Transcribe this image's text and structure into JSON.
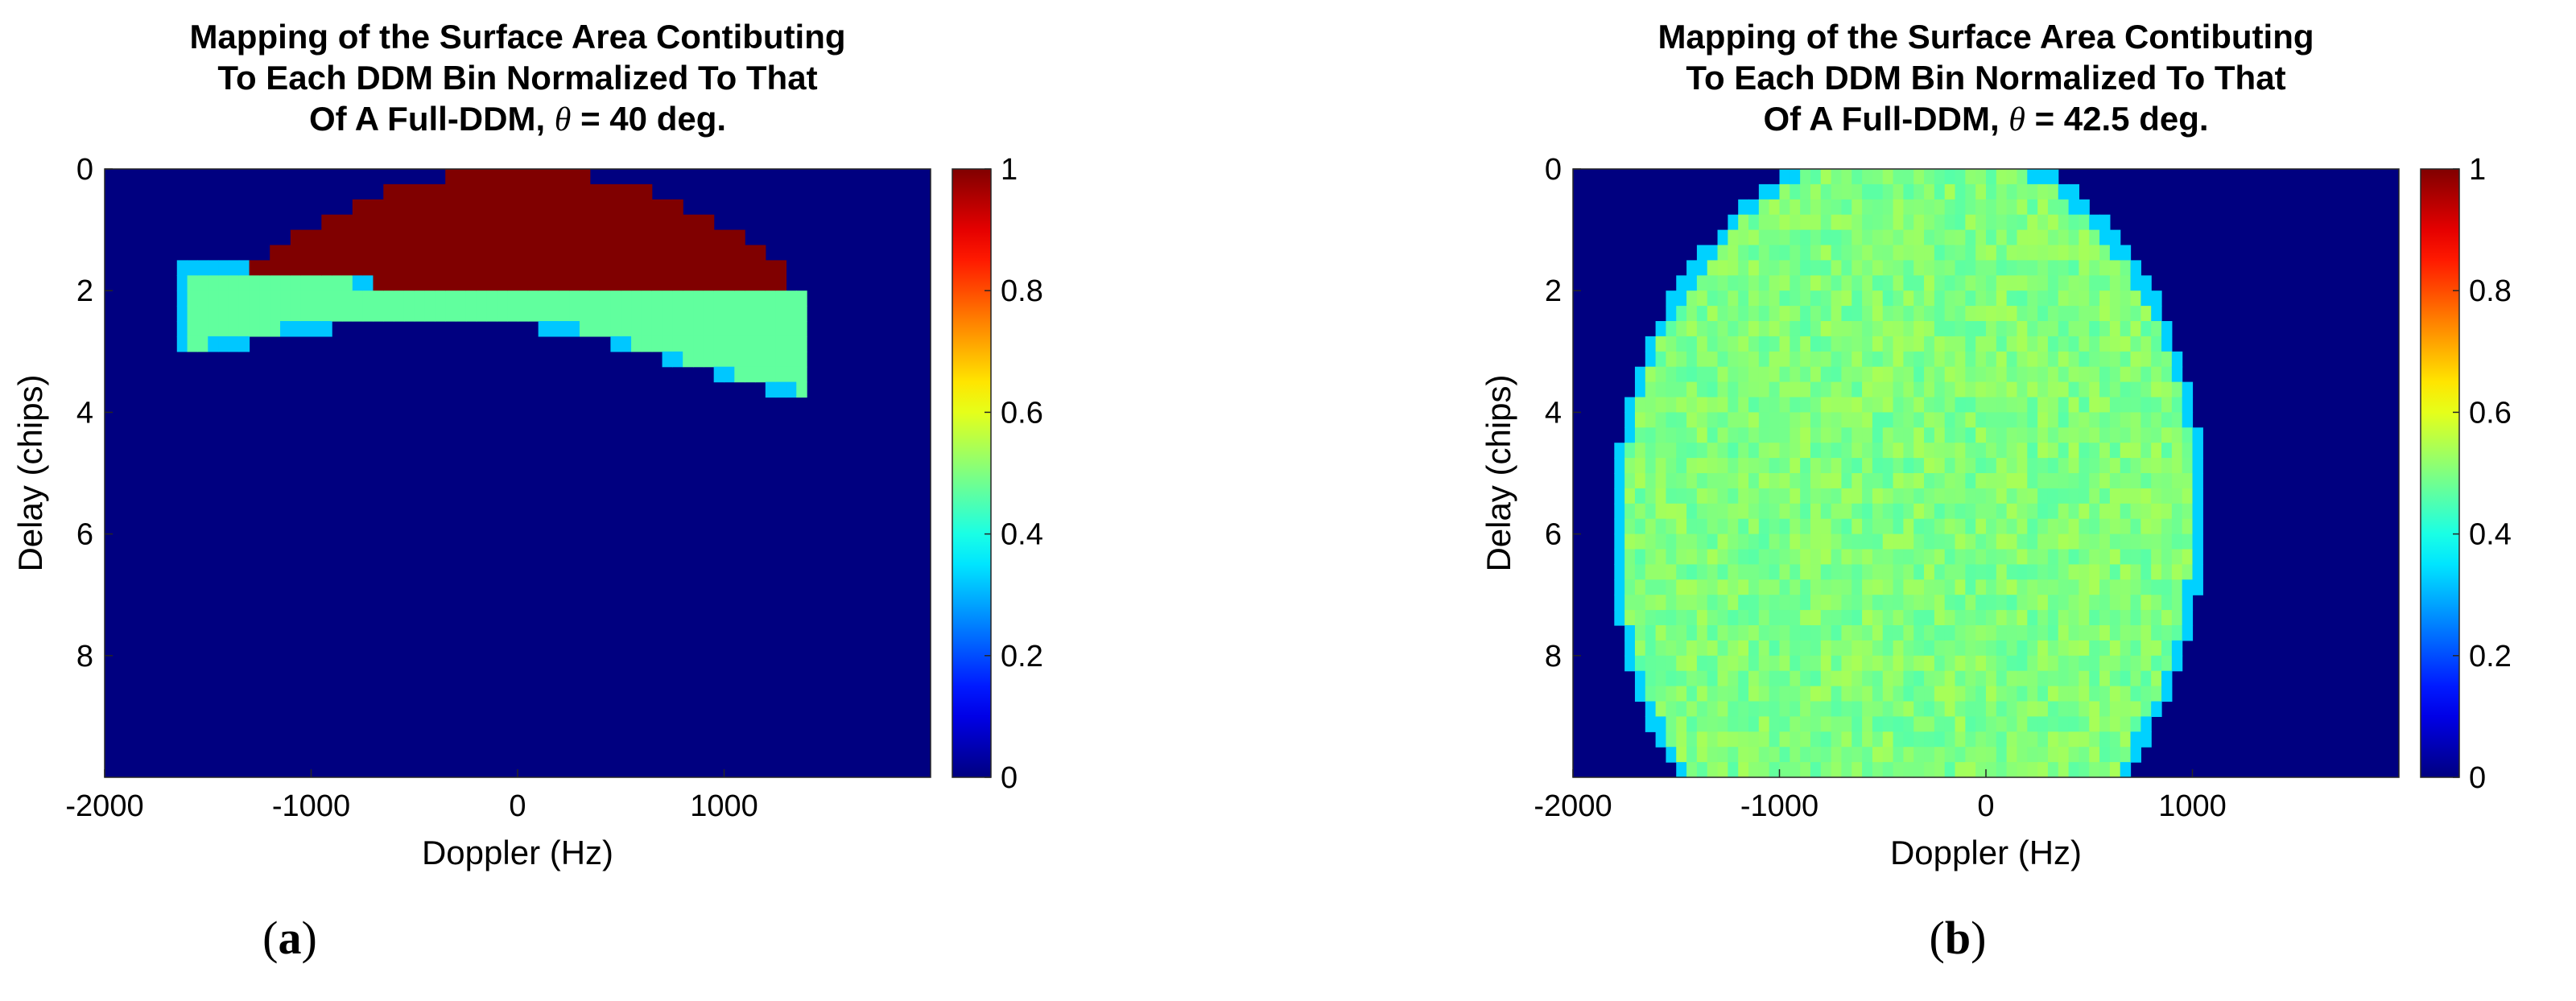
{
  "chart_data": [
    {
      "type": "heatmap",
      "title_lines": [
        "Mapping of the Surface Area Contibuting",
        "To Each DDM Bin Normalized To That"
      ],
      "title_line3_prefix": "Of A Full-DDM, ",
      "title_theta": "θ",
      "title_line3_suffix": " = 40 deg.",
      "xlabel": "Doppler (Hz)",
      "ylabel": "Delay (chips)",
      "xlim": [
        -2000,
        2000
      ],
      "ylim": [
        0,
        10
      ],
      "xticks": [
        "-2000",
        "-1000",
        "0",
        "1000"
      ],
      "xtick_values": [
        -2000,
        -1000,
        0,
        1000
      ],
      "yticks": [
        "0",
        "2",
        "4",
        "6",
        "8"
      ],
      "ytick_values": [
        0,
        2,
        4,
        6,
        8
      ],
      "colorbar_ticks": [
        "0",
        "0.2",
        "0.4",
        "0.6",
        "0.8",
        "1"
      ],
      "colorbar_values": [
        0,
        0.2,
        0.4,
        0.6,
        0.8,
        1
      ],
      "clim": [
        0,
        1
      ],
      "colormap": "jet",
      "grid": false,
      "background_value": 0,
      "region_value": 1.0,
      "band_value": 0.47,
      "region_description": "full-coverage (1.0) cap for delay 0-2 chips spanning about -1500 to 1300 Hz; partial-coverage (~0.45) band at 2-3.3 chips"
    },
    {
      "type": "heatmap",
      "title_lines": [
        "Mapping of the Surface Area Contibuting",
        "To Each DDM Bin Normalized To That"
      ],
      "title_line3_prefix": "Of A Full-DDM, ",
      "title_theta": "θ",
      "title_line3_suffix": " = 42.5 deg.",
      "xlabel": "Doppler (Hz)",
      "ylabel": "Delay (chips)",
      "xlim": [
        -2000,
        2000
      ],
      "ylim": [
        0,
        10
      ],
      "xticks": [
        "-2000",
        "-1000",
        "0",
        "1000"
      ],
      "xtick_values": [
        -2000,
        -1000,
        0,
        1000
      ],
      "yticks": [
        "0",
        "2",
        "4",
        "6",
        "8"
      ],
      "ytick_values": [
        0,
        2,
        4,
        6,
        8
      ],
      "colorbar_ticks": [
        "0",
        "0.2",
        "0.4",
        "0.6",
        "0.8",
        "1"
      ],
      "colorbar_values": [
        0,
        0.2,
        0.4,
        0.6,
        0.8,
        1
      ],
      "clim": [
        0,
        1
      ],
      "colormap": "jet",
      "grid": false,
      "background_value": 0,
      "region_value": 0.5,
      "band_value": 0.5,
      "region_description": "tilted elliptical region of roughly uniform value ~0.5 spanning about -2000 to 1150 Hz and delay 0-10 chips"
    }
  ],
  "sublabels": {
    "a": "a",
    "b": "b"
  },
  "paren_open": "(",
  "paren_close": ")"
}
